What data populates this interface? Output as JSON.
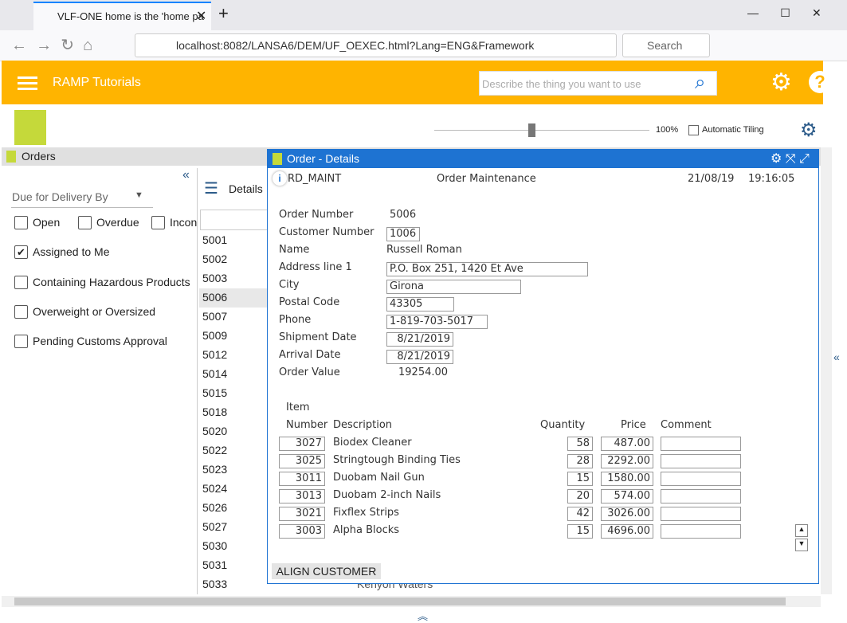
{
  "browser": {
    "tab_title": "VLF-ONE home is the 'home pa",
    "url": "localhost:8082/LANSA6/DEM/UF_OEXEC.html?Lang=ENG&Framework",
    "search": "Search"
  },
  "app": {
    "title": "RAMP Tutorials",
    "search_placeholder": "Describe the thing you want to use",
    "zoom": "100%",
    "auto_tiling": "Automatic Tiling"
  },
  "orders_panel": {
    "title": "Orders",
    "dropdown": "Due for Delivery By",
    "filters": [
      {
        "label": "Open",
        "checked": false
      },
      {
        "label": "Overdue",
        "checked": false
      },
      {
        "label": "Incon",
        "checked": false
      },
      {
        "label": "Assigned to Me",
        "checked": true
      },
      {
        "label": "Containing Hazardous Products",
        "checked": false
      },
      {
        "label": "Overweight or Oversized",
        "checked": false
      },
      {
        "label": "Pending Customs Approval",
        "checked": false
      }
    ],
    "list_header": "Details",
    "selected": "5006",
    "order_ids": [
      "5001",
      "5002",
      "5003",
      "5006",
      "5007",
      "5009",
      "5012",
      "5014",
      "5015",
      "5018",
      "5020",
      "5022",
      "5023",
      "5024",
      "5026",
      "5027",
      "5030",
      "5031",
      "5033"
    ],
    "hidden_name": "Kenyon Waters"
  },
  "details": {
    "title": "Order - Details",
    "program": "RD_MAINT",
    "heading": "Order Maintenance",
    "date": "21/08/19",
    "time": "19:16:05",
    "fields": [
      [
        "Order Number",
        "5006"
      ],
      [
        "Customer Number",
        "1006"
      ],
      [
        "Name",
        "Russell Roman"
      ],
      [
        "Address line 1",
        "P.O. Box 251, 1420 Et Ave"
      ],
      [
        "City",
        "Girona"
      ],
      [
        "Postal Code",
        "43305"
      ],
      [
        "Phone",
        "1-819-703-5017"
      ],
      [
        "Shipment Date",
        "8/21/2019"
      ],
      [
        "Arrival Date",
        "8/21/2019"
      ],
      [
        "Order Value",
        "19254.00"
      ]
    ],
    "items_headers": {
      "item": "Item",
      "number": "Number",
      "description": "Description",
      "quantity": "Quantity",
      "price": "Price",
      "comment": "Comment"
    },
    "items": [
      [
        "3027",
        "Biodex Cleaner",
        "58",
        "487.00"
      ],
      [
        "3025",
        "Stringtough Binding Ties",
        "28",
        "2292.00"
      ],
      [
        "3011",
        "Duobam Nail Gun",
        "15",
        "1580.00"
      ],
      [
        "3013",
        "Duobam 2-inch Nails",
        "20",
        "574.00"
      ],
      [
        "3021",
        "Fixflex Strips",
        "42",
        "3026.00"
      ],
      [
        "3003",
        "Alpha Blocks",
        "15",
        "4696.00"
      ]
    ],
    "button": "ALIGN CUSTOMER"
  }
}
